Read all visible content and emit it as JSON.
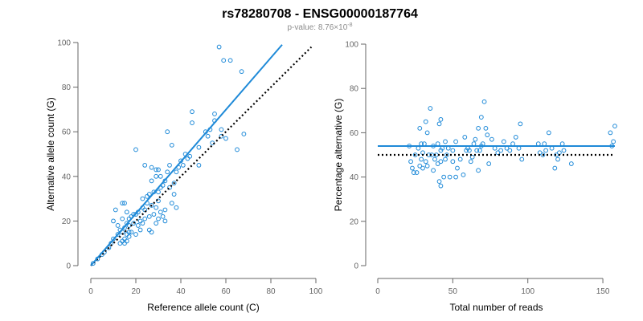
{
  "title": "rs78280708 - ENSG00000187764",
  "subtitle": {
    "prefix": "p-value: 8.76×10",
    "exponent": "-8"
  },
  "colors": {
    "points": "#1f8ad8",
    "fit_line": "#1f8ad8",
    "reference_line": "#000000",
    "axis": "#666666"
  },
  "chart_data": [
    {
      "type": "scatter",
      "xlabel": "Reference allele count (C)",
      "ylabel": "Alternative allele count (G)",
      "xlim": [
        0,
        100
      ],
      "ylim": [
        0,
        100
      ],
      "xticks": [
        0,
        20,
        40,
        60,
        80,
        100
      ],
      "yticks": [
        0,
        20,
        40,
        60,
        80,
        100
      ],
      "grid": false,
      "points": [
        [
          1,
          1
        ],
        [
          3,
          3
        ],
        [
          5,
          5
        ],
        [
          6,
          6
        ],
        [
          8,
          8
        ],
        [
          9,
          10
        ],
        [
          10,
          12
        ],
        [
          10,
          20
        ],
        [
          11,
          25
        ],
        [
          12,
          14
        ],
        [
          12,
          18
        ],
        [
          13,
          10
        ],
        [
          13,
          16
        ],
        [
          14,
          11
        ],
        [
          14,
          15
        ],
        [
          14,
          21
        ],
        [
          14,
          28
        ],
        [
          15,
          10
        ],
        [
          15,
          12
        ],
        [
          15,
          17
        ],
        [
          15,
          28
        ],
        [
          16,
          11
        ],
        [
          16,
          14
        ],
        [
          16,
          19
        ],
        [
          16,
          24
        ],
        [
          17,
          13
        ],
        [
          17,
          15
        ],
        [
          17,
          18
        ],
        [
          17,
          21
        ],
        [
          18,
          15
        ],
        [
          18,
          22
        ],
        [
          19,
          19
        ],
        [
          19,
          23
        ],
        [
          20,
          14
        ],
        [
          20,
          23
        ],
        [
          20,
          52
        ],
        [
          21,
          18
        ],
        [
          21,
          24
        ],
        [
          22,
          16
        ],
        [
          22,
          20
        ],
        [
          23,
          19
        ],
        [
          23,
          26
        ],
        [
          23,
          30
        ],
        [
          24,
          21
        ],
        [
          24,
          25
        ],
        [
          24,
          45
        ],
        [
          25,
          28
        ],
        [
          25,
          31
        ],
        [
          26,
          16
        ],
        [
          26,
          22
        ],
        [
          26,
          32
        ],
        [
          27,
          15
        ],
        [
          27,
          27
        ],
        [
          27,
          38
        ],
        [
          27,
          44
        ],
        [
          28,
          23
        ],
        [
          28,
          33
        ],
        [
          29,
          19
        ],
        [
          29,
          26
        ],
        [
          29,
          43
        ],
        [
          29,
          40
        ],
        [
          30,
          21
        ],
        [
          30,
          29
        ],
        [
          30,
          33
        ],
        [
          30,
          43
        ],
        [
          31,
          24
        ],
        [
          31,
          35
        ],
        [
          31,
          40
        ],
        [
          32,
          22
        ],
        [
          32,
          36
        ],
        [
          33,
          20
        ],
        [
          33,
          25
        ],
        [
          33,
          38
        ],
        [
          34,
          42
        ],
        [
          34,
          60
        ],
        [
          35,
          35
        ],
        [
          35,
          45
        ],
        [
          36,
          28
        ],
        [
          36,
          54
        ],
        [
          37,
          32
        ],
        [
          37,
          37
        ],
        [
          38,
          26
        ],
        [
          38,
          42
        ],
        [
          39,
          44
        ],
        [
          40,
          47
        ],
        [
          41,
          45
        ],
        [
          42,
          50
        ],
        [
          43,
          48
        ],
        [
          44,
          49
        ],
        [
          45,
          64
        ],
        [
          45,
          69
        ],
        [
          48,
          53
        ],
        [
          48,
          45
        ],
        [
          51,
          60
        ],
        [
          52,
          58
        ],
        [
          53,
          61
        ],
        [
          54,
          55
        ],
        [
          55,
          65
        ],
        [
          55,
          68
        ],
        [
          57,
          98
        ],
        [
          58,
          58
        ],
        [
          58,
          61
        ],
        [
          59,
          92
        ],
        [
          60,
          57
        ],
        [
          62,
          92
        ],
        [
          65,
          52
        ],
        [
          67,
          87
        ],
        [
          68,
          59
        ]
      ],
      "fit_line": {
        "x": [
          0,
          85
        ],
        "y": [
          0,
          99
        ]
      },
      "reference_line": {
        "x": [
          0,
          98
        ],
        "y": [
          0,
          98
        ]
      }
    },
    {
      "type": "scatter",
      "xlabel": "Total number of reads",
      "ylabel": "Percentage alternative (G)",
      "xlim": [
        0,
        158
      ],
      "ylim": [
        0,
        100
      ],
      "xticks": [
        0,
        50,
        100,
        150
      ],
      "yticks": [
        0,
        20,
        40,
        60,
        80,
        100
      ],
      "grid": false,
      "points": [
        [
          21,
          54
        ],
        [
          22,
          47
        ],
        [
          23,
          44
        ],
        [
          24,
          42
        ],
        [
          25,
          50
        ],
        [
          26,
          42
        ],
        [
          27,
          53
        ],
        [
          28,
          45
        ],
        [
          28,
          62
        ],
        [
          29,
          48
        ],
        [
          29,
          55
        ],
        [
          30,
          44
        ],
        [
          30,
          51
        ],
        [
          31,
          55
        ],
        [
          32,
          47
        ],
        [
          32,
          65
        ],
        [
          33,
          45
        ],
        [
          33,
          60
        ],
        [
          34,
          50
        ],
        [
          35,
          71
        ],
        [
          36,
          50
        ],
        [
          37,
          43
        ],
        [
          37,
          54
        ],
        [
          38,
          48
        ],
        [
          39,
          50
        ],
        [
          40,
          46
        ],
        [
          40,
          55
        ],
        [
          41,
          38
        ],
        [
          41,
          64
        ],
        [
          42,
          36
        ],
        [
          42,
          47
        ],
        [
          42,
          52
        ],
        [
          42,
          66
        ],
        [
          43,
          53
        ],
        [
          44,
          40
        ],
        [
          45,
          56
        ],
        [
          45,
          48
        ],
        [
          46,
          50
        ],
        [
          47,
          53
        ],
        [
          48,
          40
        ],
        [
          50,
          52
        ],
        [
          50,
          47
        ],
        [
          52,
          40
        ],
        [
          52,
          56
        ],
        [
          53,
          44
        ],
        [
          55,
          48
        ],
        [
          57,
          41
        ],
        [
          58,
          58
        ],
        [
          59,
          52
        ],
        [
          60,
          53
        ],
        [
          61,
          52
        ],
        [
          62,
          47
        ],
        [
          63,
          49
        ],
        [
          64,
          55
        ],
        [
          65,
          57
        ],
        [
          66,
          52
        ],
        [
          67,
          62
        ],
        [
          67,
          43
        ],
        [
          68,
          52
        ],
        [
          69,
          67
        ],
        [
          69,
          54
        ],
        [
          70,
          55
        ],
        [
          71,
          74
        ],
        [
          72,
          62
        ],
        [
          73,
          59
        ],
        [
          74,
          46
        ],
        [
          76,
          57
        ],
        [
          78,
          53
        ],
        [
          80,
          51
        ],
        [
          82,
          52
        ],
        [
          84,
          56
        ],
        [
          86,
          53
        ],
        [
          88,
          52
        ],
        [
          90,
          55
        ],
        [
          92,
          58
        ],
        [
          94,
          53
        ],
        [
          95,
          64
        ],
        [
          96,
          48
        ],
        [
          107,
          55
        ],
        [
          108,
          51
        ],
        [
          110,
          50
        ],
        [
          111,
          55
        ],
        [
          112,
          52
        ],
        [
          114,
          60
        ],
        [
          116,
          53
        ],
        [
          118,
          44
        ],
        [
          119,
          50
        ],
        [
          120,
          48
        ],
        [
          121,
          51
        ],
        [
          123,
          55
        ],
        [
          124,
          52
        ],
        [
          129,
          46
        ],
        [
          155,
          60
        ],
        [
          156,
          54
        ],
        [
          157,
          56
        ],
        [
          158,
          63
        ]
      ],
      "fit_line": {
        "x": [
          0,
          158
        ],
        "y": [
          54,
          54
        ]
      },
      "reference_line": {
        "x": [
          0,
          158
        ],
        "y": [
          50,
          50
        ]
      }
    }
  ]
}
